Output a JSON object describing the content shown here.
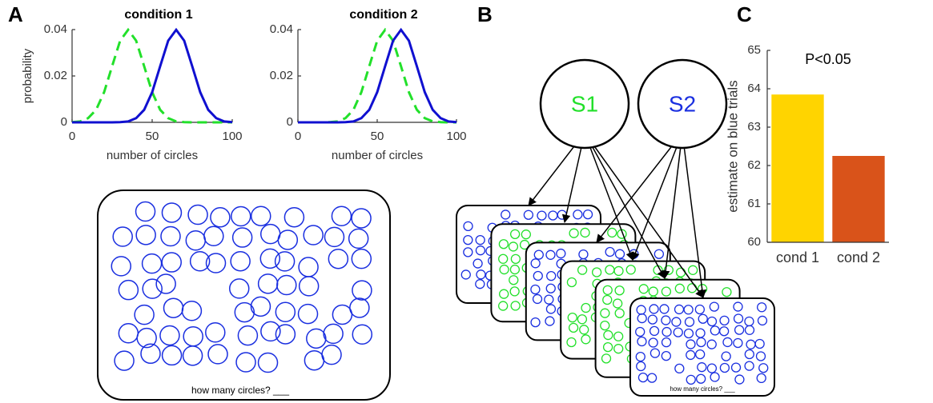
{
  "panels": [
    "A",
    "B",
    "C"
  ],
  "diagram": {
    "s1": "S1",
    "s2": "S2",
    "question": "how many circles? ___",
    "card_question": "how many circles? ___"
  },
  "chart_data": [
    {
      "type": "line",
      "title": "condition 1",
      "xlabel": "number of circles",
      "ylabel": "probability",
      "x": [
        0,
        5,
        10,
        15,
        20,
        25,
        30,
        35,
        40,
        45,
        50,
        55,
        60,
        65,
        70,
        75,
        80,
        85,
        90,
        95,
        100
      ],
      "xlim": [
        0,
        100
      ],
      "xticks": [
        0,
        50,
        100
      ],
      "ylim": [
        0,
        0.04
      ],
      "yticks": [
        0,
        0.02,
        0.04
      ],
      "series": [
        {
          "color": "#22e02a",
          "linestyle": "dashed",
          "values": [
            0.0001,
            0.0004,
            0.0018,
            0.0054,
            0.013,
            0.0242,
            0.0352,
            0.0399,
            0.0352,
            0.0242,
            0.013,
            0.0054,
            0.0018,
            0.0004,
            0.0001,
            0,
            0,
            0,
            0,
            0,
            0
          ]
        },
        {
          "color": "#1010d0",
          "linestyle": "solid",
          "values": [
            0,
            0,
            0,
            0,
            0,
            0,
            0.0001,
            0.0004,
            0.0018,
            0.0054,
            0.013,
            0.0242,
            0.0352,
            0.0399,
            0.0352,
            0.0242,
            0.013,
            0.0054,
            0.0018,
            0.0004,
            0.0001
          ]
        }
      ]
    },
    {
      "type": "line",
      "title": "condition 2",
      "xlabel": "number of circles",
      "x": [
        0,
        5,
        10,
        15,
        20,
        25,
        30,
        35,
        40,
        45,
        50,
        55,
        60,
        65,
        70,
        75,
        80,
        85,
        90,
        95,
        100
      ],
      "xlim": [
        0,
        100
      ],
      "xticks": [
        0,
        50,
        100
      ],
      "ylim": [
        0,
        0.04
      ],
      "yticks": [
        0,
        0.02,
        0.04
      ],
      "series": [
        {
          "color": "#22e02a",
          "linestyle": "dashed",
          "values": [
            0,
            0,
            0,
            0,
            0.0001,
            0.0004,
            0.0018,
            0.0054,
            0.013,
            0.0242,
            0.0352,
            0.0399,
            0.0352,
            0.0242,
            0.013,
            0.0054,
            0.0018,
            0.0004,
            0.0001,
            0,
            0
          ]
        },
        {
          "color": "#1010d0",
          "linestyle": "solid",
          "values": [
            0,
            0,
            0,
            0,
            0,
            0,
            0.0001,
            0.0004,
            0.0018,
            0.0054,
            0.013,
            0.0242,
            0.0352,
            0.0399,
            0.0352,
            0.0242,
            0.013,
            0.0054,
            0.0018,
            0.0004,
            0.0001
          ]
        }
      ]
    },
    {
      "type": "bar",
      "ylabel": "estimate on blue trials",
      "annotation": "P<0.05",
      "categories": [
        "cond 1",
        "cond 2"
      ],
      "values": [
        63.85,
        62.25
      ],
      "colors": [
        "#ffd400",
        "#d9531a"
      ],
      "ylim": [
        60,
        65
      ],
      "yticks": [
        60,
        61,
        62,
        63,
        64,
        65
      ]
    }
  ]
}
